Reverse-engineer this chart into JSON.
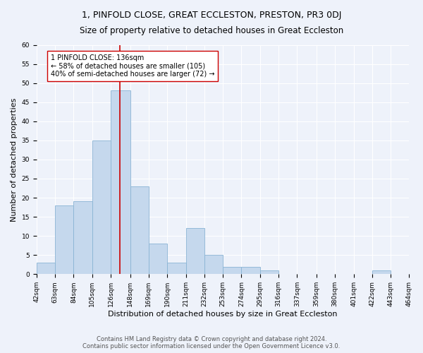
{
  "title": "1, PINFOLD CLOSE, GREAT ECCLESTON, PRESTON, PR3 0DJ",
  "subtitle": "Size of property relative to detached houses in Great Eccleston",
  "xlabel": "Distribution of detached houses by size in Great Eccleston",
  "ylabel": "Number of detached properties",
  "bar_color": "#c5d8ed",
  "bar_edge_color": "#8ab4d4",
  "background_color": "#eef2fa",
  "bins": [
    42,
    63,
    84,
    105,
    126,
    148,
    169,
    190,
    211,
    232,
    253,
    274,
    295,
    316,
    337,
    359,
    380,
    401,
    422,
    443,
    464
  ],
  "bin_labels": [
    "42sqm",
    "63sqm",
    "84sqm",
    "105sqm",
    "126sqm",
    "148sqm",
    "169sqm",
    "190sqm",
    "211sqm",
    "232sqm",
    "253sqm",
    "274sqm",
    "295sqm",
    "316sqm",
    "337sqm",
    "359sqm",
    "380sqm",
    "401sqm",
    "422sqm",
    "443sqm",
    "464sqm"
  ],
  "values": [
    3,
    18,
    19,
    35,
    48,
    23,
    8,
    3,
    12,
    5,
    2,
    2,
    1,
    0,
    0,
    0,
    0,
    0,
    1,
    0
  ],
  "property_size": 136,
  "vline_color": "#cc0000",
  "annotation_text": "1 PINFOLD CLOSE: 136sqm\n← 58% of detached houses are smaller (105)\n40% of semi-detached houses are larger (72) →",
  "annotation_box_color": "#ffffff",
  "annotation_border_color": "#cc0000",
  "ylim": [
    0,
    60
  ],
  "yticks": [
    0,
    5,
    10,
    15,
    20,
    25,
    30,
    35,
    40,
    45,
    50,
    55,
    60
  ],
  "footer": "Contains HM Land Registry data © Crown copyright and database right 2024.\nContains public sector information licensed under the Open Government Licence v3.0.",
  "grid_color": "#ffffff",
  "title_fontsize": 9,
  "subtitle_fontsize": 8.5,
  "label_fontsize": 8,
  "tick_fontsize": 6.5,
  "annotation_fontsize": 7,
  "footer_fontsize": 6
}
